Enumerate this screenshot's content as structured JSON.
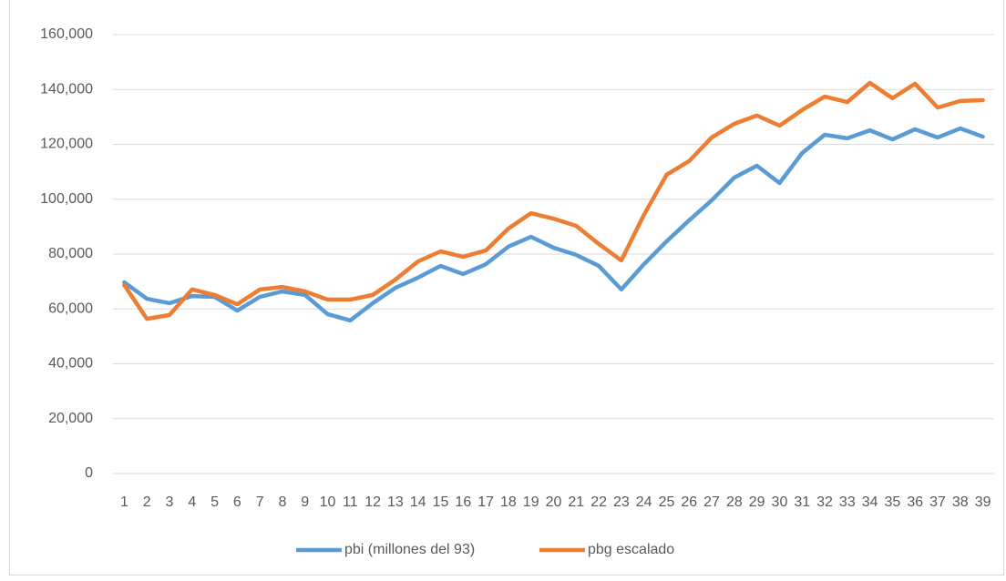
{
  "chart_data": {
    "type": "line",
    "categories": [
      "1",
      "2",
      "3",
      "4",
      "5",
      "6",
      "7",
      "8",
      "9",
      "10",
      "11",
      "12",
      "13",
      "14",
      "15",
      "16",
      "17",
      "18",
      "19",
      "20",
      "21",
      "22",
      "23",
      "24",
      "25",
      "26",
      "27",
      "28",
      "29",
      "30",
      "31",
      "32",
      "33",
      "34",
      "35",
      "36",
      "37",
      "38",
      "39"
    ],
    "series": [
      {
        "name": "pbi (millones del 93)",
        "color": "#5b9bd5",
        "values": [
          69700,
          63700,
          62100,
          64700,
          64400,
          59400,
          64400,
          66400,
          65100,
          58100,
          55800,
          62100,
          67700,
          71400,
          75700,
          72700,
          76300,
          82700,
          86300,
          82300,
          79700,
          75700,
          67100,
          76300,
          84600,
          92300,
          99600,
          107900,
          112200,
          105900,
          116800,
          123500,
          122200,
          125100,
          121800,
          125500,
          122500,
          125800,
          122800
        ]
      },
      {
        "name": "pbg escalado",
        "color": "#ed7d31",
        "values": [
          68700,
          56400,
          57800,
          67100,
          65100,
          61700,
          67100,
          68000,
          66400,
          63400,
          63400,
          65100,
          70700,
          77300,
          81000,
          79000,
          81300,
          89300,
          94900,
          92900,
          90300,
          83700,
          77700,
          94300,
          108900,
          113900,
          122500,
          127500,
          130500,
          126800,
          132500,
          137400,
          135400,
          142400,
          136800,
          142100,
          133400,
          135800,
          136100
        ]
      }
    ],
    "ylim": [
      0,
      160000
    ],
    "yticks": [
      0,
      {
        "value": 20000,
        "label": "20,000"
      },
      {
        "value": 40000,
        "label": "40,000"
      },
      {
        "value": 60000,
        "label": "60,000"
      },
      {
        "value": 80000,
        "label": "80,000"
      },
      {
        "value": 100000,
        "label": "100,000"
      },
      {
        "value": 120000,
        "label": "120,000"
      },
      {
        "value": 140000,
        "label": "140,000"
      },
      {
        "value": 160000,
        "label": "160,000"
      }
    ],
    "grid": true,
    "legend": "bottom"
  }
}
